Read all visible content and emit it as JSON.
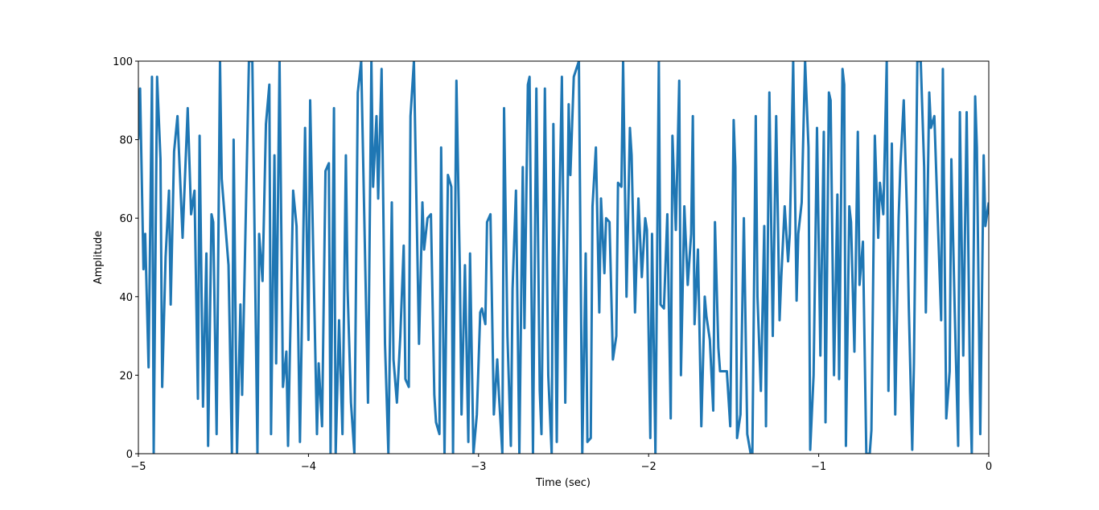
{
  "chart_data": {
    "type": "line",
    "x_label": "Time (sec)",
    "y_label": "Amplitude",
    "color": "#1f77b4",
    "xlim": [
      -5,
      0
    ],
    "xticks": [
      {
        "value": -5,
        "label": "−5"
      },
      {
        "value": -4,
        "label": "−4"
      },
      {
        "value": -3,
        "label": "−3"
      },
      {
        "value": -2,
        "label": "−2"
      },
      {
        "value": -1,
        "label": "−1"
      },
      0
    ],
    "ylim": [
      0,
      100
    ],
    "yticks": [
      0,
      20,
      40,
      60,
      80,
      100
    ],
    "grid": false,
    "x": [
      -5.0,
      -4.99,
      -4.97,
      -4.96,
      -4.94,
      -4.92,
      -4.91,
      -4.89,
      -4.87,
      -4.86,
      -4.84,
      -4.82,
      -4.81,
      -4.79,
      -4.77,
      -4.74,
      -4.71,
      -4.69,
      -4.67,
      -4.65,
      -4.64,
      -4.62,
      -4.6,
      -4.59,
      -4.57,
      -4.56,
      -4.54,
      -4.52,
      -4.51,
      -4.47,
      -4.45,
      -4.44,
      -4.42,
      -4.4,
      -4.39,
      -4.35,
      -4.33,
      -4.3,
      -4.29,
      -4.27,
      -4.25,
      -4.23,
      -4.22,
      -4.2,
      -4.19,
      -4.17,
      -4.15,
      -4.13,
      -4.12,
      -4.09,
      -4.07,
      -4.05,
      -4.02,
      -4.0,
      -3.99,
      -3.95,
      -3.94,
      -3.92,
      -3.9,
      -3.88,
      -3.87,
      -3.85,
      -3.84,
      -3.82,
      -3.8,
      -3.78,
      -3.77,
      -3.75,
      -3.73,
      -3.71,
      -3.69,
      -3.65,
      -3.63,
      -3.62,
      -3.6,
      -3.59,
      -3.57,
      -3.55,
      -3.53,
      -3.51,
      -3.5,
      -3.48,
      -3.46,
      -3.44,
      -3.43,
      -3.41,
      -3.4,
      -3.38,
      -3.35,
      -3.33,
      -3.32,
      -3.3,
      -3.28,
      -3.26,
      -3.25,
      -3.23,
      -3.22,
      -3.2,
      -3.18,
      -3.16,
      -3.15,
      -3.13,
      -3.11,
      -3.1,
      -3.08,
      -3.06,
      -3.05,
      -3.03,
      -3.01,
      -2.99,
      -2.98,
      -2.96,
      -2.95,
      -2.93,
      -2.91,
      -2.89,
      -2.88,
      -2.86,
      -2.85,
      -2.83,
      -2.81,
      -2.8,
      -2.78,
      -2.76,
      -2.74,
      -2.73,
      -2.71,
      -2.7,
      -2.68,
      -2.66,
      -2.64,
      -2.63,
      -2.61,
      -2.59,
      -2.57,
      -2.56,
      -2.54,
      -2.53,
      -2.51,
      -2.49,
      -2.47,
      -2.46,
      -2.44,
      -2.41,
      -2.39,
      -2.37,
      -2.36,
      -2.34,
      -2.33,
      -2.31,
      -2.29,
      -2.28,
      -2.26,
      -2.25,
      -2.23,
      -2.21,
      -2.19,
      -2.18,
      -2.16,
      -2.15,
      -2.13,
      -2.11,
      -2.1,
      -2.08,
      -2.06,
      -2.04,
      -2.02,
      -2.01,
      -1.99,
      -1.98,
      -1.96,
      -1.94,
      -1.93,
      -1.91,
      -1.89,
      -1.87,
      -1.86,
      -1.84,
      -1.82,
      -1.81,
      -1.79,
      -1.77,
      -1.75,
      -1.74,
      -1.73,
      -1.71,
      -1.69,
      -1.67,
      -1.66,
      -1.64,
      -1.62,
      -1.61,
      -1.59,
      -1.58,
      -1.56,
      -1.54,
      -1.52,
      -1.5,
      -1.49,
      -1.48,
      -1.46,
      -1.44,
      -1.42,
      -1.4,
      -1.39,
      -1.37,
      -1.36,
      -1.34,
      -1.32,
      -1.31,
      -1.29,
      -1.27,
      -1.25,
      -1.23,
      -1.22,
      -1.2,
      -1.18,
      -1.17,
      -1.15,
      -1.13,
      -1.12,
      -1.1,
      -1.08,
      -1.06,
      -1.05,
      -1.03,
      -1.01,
      -0.99,
      -0.97,
      -0.96,
      -0.94,
      -0.93,
      -0.91,
      -0.89,
      -0.88,
      -0.86,
      -0.85,
      -0.84,
      -0.82,
      -0.81,
      -0.79,
      -0.77,
      -0.76,
      -0.74,
      -0.72,
      -0.7,
      -0.69,
      -0.67,
      -0.65,
      -0.64,
      -0.62,
      -0.6,
      -0.59,
      -0.57,
      -0.55,
      -0.53,
      -0.52,
      -0.5,
      -0.48,
      -0.47,
      -0.45,
      -0.44,
      -0.42,
      -0.4,
      -0.38,
      -0.37,
      -0.35,
      -0.34,
      -0.32,
      -0.31,
      -0.28,
      -0.27,
      -0.25,
      -0.23,
      -0.22,
      -0.2,
      -0.18,
      -0.17,
      -0.15,
      -0.13,
      -0.11,
      -0.1,
      -0.08,
      -0.07,
      -0.05,
      -0.03,
      -0.02,
      0.0
    ],
    "values": [
      80,
      93,
      47,
      56,
      22,
      96,
      0,
      96,
      75,
      17,
      50,
      67,
      38,
      77,
      86,
      55,
      88,
      61,
      67,
      14,
      81,
      12,
      51,
      2,
      61,
      59,
      5,
      100,
      70,
      48,
      0,
      80,
      0,
      38,
      15,
      100,
      100,
      0,
      56,
      44,
      84,
      94,
      5,
      76,
      23,
      100,
      17,
      26,
      2,
      67,
      58,
      3,
      83,
      29,
      90,
      5,
      23,
      7,
      72,
      74,
      0,
      88,
      0,
      34,
      5,
      76,
      42,
      13,
      0,
      92,
      100,
      13,
      100,
      68,
      86,
      65,
      98,
      28,
      0,
      64,
      24,
      13,
      30,
      53,
      19,
      17,
      86,
      100,
      28,
      64,
      52,
      60,
      61,
      15,
      8,
      5,
      78,
      0,
      71,
      68,
      0,
      95,
      47,
      10,
      48,
      3,
      51,
      0,
      10,
      36,
      37,
      33,
      59,
      61,
      10,
      24,
      15,
      0,
      88,
      30,
      2,
      42,
      67,
      0,
      73,
      32,
      94,
      96,
      0,
      93,
      16,
      5,
      93,
      20,
      0,
      84,
      3,
      50,
      96,
      13,
      89,
      71,
      96,
      100,
      0,
      51,
      3,
      4,
      63,
      78,
      36,
      65,
      46,
      60,
      59,
      24,
      30,
      69,
      68,
      100,
      40,
      83,
      76,
      36,
      65,
      45,
      60,
      57,
      4,
      56,
      0,
      100,
      38,
      37,
      61,
      9,
      81,
      57,
      95,
      20,
      63,
      43,
      56,
      86,
      33,
      52,
      7,
      40,
      35,
      29,
      11,
      59,
      27,
      21,
      21,
      21,
      7,
      85,
      73,
      4,
      10,
      60,
      5,
      0,
      0,
      86,
      40,
      16,
      58,
      7,
      92,
      30,
      86,
      34,
      45,
      63,
      49,
      56,
      100,
      39,
      56,
      64,
      100,
      78,
      1,
      20,
      83,
      25,
      82,
      8,
      92,
      90,
      20,
      66,
      19,
      98,
      94,
      2,
      63,
      59,
      26,
      82,
      43,
      54,
      0,
      0,
      6,
      81,
      55,
      69,
      61,
      100,
      16,
      79,
      10,
      60,
      73,
      90,
      60,
      37,
      1,
      23,
      100,
      100,
      73,
      36,
      92,
      83,
      86,
      73,
      34,
      98,
      9,
      21,
      75,
      36,
      2,
      87,
      25,
      87,
      16,
      0,
      91,
      78,
      5,
      76,
      58,
      64
    ]
  }
}
